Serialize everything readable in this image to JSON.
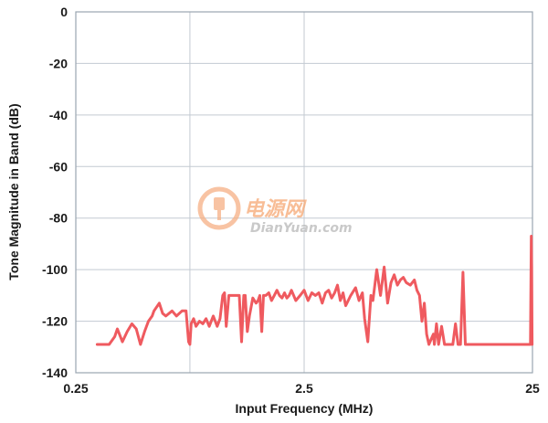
{
  "chart_data": {
    "type": "line",
    "title": "",
    "xlabel": "Input Frequency (MHz)",
    "ylabel": "Tone Magnitude in Band (dB)",
    "x_scale": "log",
    "xlim": [
      0.25,
      25
    ],
    "ylim": [
      -140,
      0
    ],
    "x_ticks": [
      0.25,
      2.5,
      25
    ],
    "x_tick_labels": [
      "0.25",
      "2.5",
      "25"
    ],
    "x_minor_gridlines": [
      0.79
    ],
    "y_ticks": [
      0,
      -20,
      -40,
      -60,
      -80,
      -100,
      -120,
      -140
    ],
    "y_tick_labels": [
      "0",
      "-20",
      "-40",
      "-60",
      "-80",
      "-100",
      "-120",
      "-140"
    ],
    "grid": true,
    "legend": "none",
    "series": [
      {
        "color": "#ef5a5f",
        "x": [
          0.31,
          0.33,
          0.35,
          0.37,
          0.38,
          0.4,
          0.42,
          0.44,
          0.46,
          0.48,
          0.5,
          0.52,
          0.54,
          0.55,
          0.58,
          0.6,
          0.62,
          0.66,
          0.69,
          0.73,
          0.74,
          0.76,
          0.78,
          0.79,
          0.8,
          0.82,
          0.84,
          0.87,
          0.9,
          0.93,
          0.96,
          1.0,
          1.04,
          1.07,
          1.1,
          1.12,
          1.14,
          1.17,
          1.2,
          1.25,
          1.3,
          1.33,
          1.36,
          1.38,
          1.41,
          1.44,
          1.49,
          1.54,
          1.57,
          1.6,
          1.63,
          1.66,
          1.7,
          1.75,
          1.8,
          1.85,
          1.9,
          1.95,
          2.0,
          2.05,
          2.1,
          2.15,
          2.2,
          2.3,
          2.4,
          2.5,
          2.6,
          2.7,
          2.8,
          2.9,
          3.0,
          3.1,
          3.2,
          3.3,
          3.4,
          3.5,
          3.6,
          3.7,
          3.8,
          4.0,
          4.2,
          4.35,
          4.5,
          4.6,
          4.75,
          4.9,
          5.0,
          5.2,
          5.4,
          5.6,
          5.8,
          6.0,
          6.2,
          6.4,
          6.6,
          6.8,
          7.0,
          7.3,
          7.6,
          7.8,
          8.0,
          8.2,
          8.4,
          8.6,
          8.8,
          9.2,
          9.3,
          9.5,
          9.7,
          10.0,
          10.3,
          10.6,
          10.9,
          11.2,
          11.5,
          11.8,
          12.1,
          12.4,
          12.7,
          13.0,
          14.0,
          16.0,
          18.0,
          20.0,
          22.0,
          24.5,
          24.6,
          24.7,
          24.8,
          24.9
        ],
        "y": [
          -129,
          -129,
          -129,
          -126,
          -123,
          -128,
          -124,
          -121,
          -123,
          -129,
          -124,
          -120,
          -118,
          -116,
          -113,
          -117,
          -118,
          -116,
          -118,
          -116,
          -116,
          -116,
          -128,
          -129,
          -121,
          -119,
          -122,
          -120,
          -121,
          -119,
          -122,
          -118,
          -122,
          -119,
          -110,
          -109,
          -122,
          -110,
          -110,
          -110,
          -110,
          -128,
          -110,
          -110,
          -124,
          -118,
          -111,
          -113,
          -112,
          -110,
          -124,
          -110,
          -110,
          -109,
          -112,
          -110,
          -108,
          -110,
          -111,
          -109,
          -111,
          -110,
          -108,
          -112,
          -110,
          -108,
          -112,
          -109,
          -110,
          -109,
          -113,
          -109,
          -108,
          -111,
          -109,
          -106,
          -112,
          -109,
          -114,
          -110,
          -107,
          -112,
          -109,
          -119,
          -128,
          -110,
          -112,
          -100,
          -110,
          -99,
          -113,
          -105,
          -102,
          -106,
          -104,
          -103,
          -105,
          -106,
          -104,
          -108,
          -110,
          -120,
          -113,
          -125,
          -129,
          -125,
          -129,
          -121,
          -129,
          -122,
          -129,
          -129,
          -129,
          -129,
          -121,
          -129,
          -129,
          -101,
          -129,
          -129,
          -129,
          -129,
          -129,
          -129,
          -129,
          -129,
          -110,
          -87,
          -99,
          -129
        ]
      }
    ]
  },
  "watermark": {
    "logo_text": "电源网",
    "site_text": "DianYuan.com",
    "color": "#f6a873"
  }
}
